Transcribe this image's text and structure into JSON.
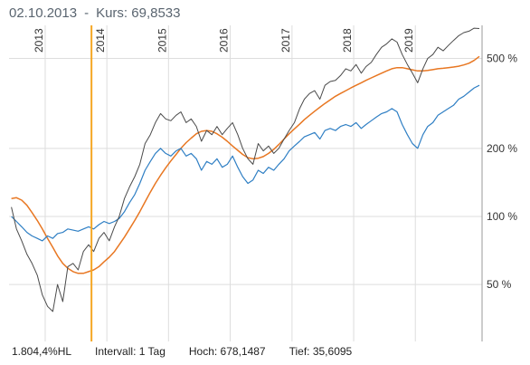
{
  "header": {
    "date": "02.10.2013",
    "separator": "-",
    "kurs_label": "Kurs:",
    "kurs_value": "69,8533"
  },
  "footer": {
    "performance": "1.804,4%HL",
    "interval": "Intervall: 1 Tag",
    "high": "Hoch: 678,1487",
    "low": "Tief: 35,6095"
  },
  "colors": {
    "price": "#4a4a4a",
    "benchmark": "#2f7fc4",
    "moving_average": "#e87722",
    "cursor": "#f5a623",
    "grid": "#dddddd"
  },
  "chart_data": {
    "type": "line",
    "y_scale": "log",
    "ylim": [
      28,
      700
    ],
    "x_range": [
      "2012-06-01",
      "2020-01-31"
    ],
    "x_tick_labels": [
      "2013",
      "2014",
      "2015",
      "2016",
      "2017",
      "2018",
      "2019"
    ],
    "y_tick_labels": [
      {
        "value": 500,
        "label": "500 %"
      },
      {
        "value": 200,
        "label": "200 %"
      },
      {
        "value": 100,
        "label": "100 %"
      },
      {
        "value": 50,
        "label": "50 %"
      }
    ],
    "cursor_date": "2013-10-02",
    "series": [
      {
        "key": "price",
        "x": [
          "2012-06",
          "2012-07",
          "2012-08",
          "2012-09",
          "2012-10",
          "2012-11",
          "2012-12",
          "2013-01",
          "2013-02",
          "2013-03",
          "2013-04",
          "2013-05",
          "2013-06",
          "2013-07",
          "2013-08",
          "2013-09",
          "2013-10",
          "2013-11",
          "2013-12",
          "2014-01",
          "2014-02",
          "2014-03",
          "2014-04",
          "2014-05",
          "2014-06",
          "2014-07",
          "2014-08",
          "2014-09",
          "2014-10",
          "2014-11",
          "2014-12",
          "2015-01",
          "2015-02",
          "2015-03",
          "2015-04",
          "2015-05",
          "2015-06",
          "2015-07",
          "2015-08",
          "2015-09",
          "2015-10",
          "2015-11",
          "2015-12",
          "2016-01",
          "2016-02",
          "2016-03",
          "2016-04",
          "2016-05",
          "2016-06",
          "2016-07",
          "2016-08",
          "2016-09",
          "2016-10",
          "2016-11",
          "2016-12",
          "2017-01",
          "2017-02",
          "2017-03",
          "2017-04",
          "2017-05",
          "2017-06",
          "2017-07",
          "2017-08",
          "2017-09",
          "2017-10",
          "2017-11",
          "2017-12",
          "2018-01",
          "2018-02",
          "2018-03",
          "2018-04",
          "2018-05",
          "2018-06",
          "2018-07",
          "2018-08",
          "2018-09",
          "2018-10",
          "2018-11",
          "2018-12",
          "2019-01",
          "2019-02",
          "2019-03",
          "2019-04",
          "2019-05",
          "2019-06",
          "2019-07",
          "2019-08",
          "2019-09",
          "2019-10",
          "2019-11",
          "2019-12",
          "2020-01"
        ],
        "values": [
          110,
          88,
          78,
          68,
          62,
          55,
          45,
          40,
          38,
          50,
          42,
          60,
          62,
          58,
          70,
          75,
          70,
          80,
          85,
          78,
          90,
          100,
          120,
          135,
          150,
          170,
          210,
          230,
          260,
          285,
          270,
          265,
          280,
          290,
          260,
          270,
          250,
          215,
          240,
          230,
          250,
          230,
          245,
          260,
          230,
          200,
          180,
          170,
          210,
          195,
          205,
          190,
          200,
          220,
          240,
          260,
          300,
          330,
          350,
          360,
          330,
          380,
          395,
          400,
          420,
          450,
          440,
          470,
          430,
          460,
          480,
          520,
          560,
          580,
          610,
          590,
          520,
          470,
          430,
          390,
          450,
          500,
          520,
          560,
          540,
          570,
          600,
          630,
          650,
          660,
          680,
          678
        ]
      },
      {
        "key": "benchmark",
        "x": [
          "2012-06",
          "2012-07",
          "2012-08",
          "2012-09",
          "2012-10",
          "2012-11",
          "2012-12",
          "2013-01",
          "2013-02",
          "2013-03",
          "2013-04",
          "2013-05",
          "2013-06",
          "2013-07",
          "2013-08",
          "2013-09",
          "2013-10",
          "2013-11",
          "2013-12",
          "2014-01",
          "2014-02",
          "2014-03",
          "2014-04",
          "2014-05",
          "2014-06",
          "2014-07",
          "2014-08",
          "2014-09",
          "2014-10",
          "2014-11",
          "2014-12",
          "2015-01",
          "2015-02",
          "2015-03",
          "2015-04",
          "2015-05",
          "2015-06",
          "2015-07",
          "2015-08",
          "2015-09",
          "2015-10",
          "2015-11",
          "2015-12",
          "2016-01",
          "2016-02",
          "2016-03",
          "2016-04",
          "2016-05",
          "2016-06",
          "2016-07",
          "2016-08",
          "2016-09",
          "2016-10",
          "2016-11",
          "2016-12",
          "2017-01",
          "2017-02",
          "2017-03",
          "2017-04",
          "2017-05",
          "2017-06",
          "2017-07",
          "2017-08",
          "2017-09",
          "2017-10",
          "2017-11",
          "2017-12",
          "2018-01",
          "2018-02",
          "2018-03",
          "2018-04",
          "2018-05",
          "2018-06",
          "2018-07",
          "2018-08",
          "2018-09",
          "2018-10",
          "2018-11",
          "2018-12",
          "2019-01",
          "2019-02",
          "2019-03",
          "2019-04",
          "2019-05",
          "2019-06",
          "2019-07",
          "2019-08",
          "2019-09",
          "2019-10",
          "2019-11",
          "2019-12",
          "2020-01"
        ],
        "values": [
          100,
          95,
          90,
          85,
          82,
          80,
          78,
          82,
          80,
          84,
          85,
          88,
          87,
          86,
          88,
          90,
          88,
          92,
          95,
          93,
          95,
          98,
          105,
          115,
          125,
          140,
          160,
          175,
          190,
          200,
          190,
          185,
          195,
          200,
          185,
          190,
          180,
          160,
          175,
          170,
          180,
          165,
          170,
          185,
          165,
          150,
          140,
          145,
          160,
          155,
          165,
          160,
          170,
          180,
          195,
          205,
          215,
          225,
          230,
          235,
          220,
          240,
          245,
          240,
          250,
          255,
          250,
          260,
          245,
          255,
          265,
          275,
          285,
          290,
          300,
          290,
          255,
          230,
          210,
          200,
          230,
          250,
          260,
          280,
          290,
          300,
          310,
          330,
          340,
          355,
          370,
          380
        ]
      },
      {
        "key": "moving_average",
        "x": [
          "2012-06",
          "2012-07",
          "2012-08",
          "2012-09",
          "2012-10",
          "2012-11",
          "2012-12",
          "2013-01",
          "2013-02",
          "2013-03",
          "2013-04",
          "2013-05",
          "2013-06",
          "2013-07",
          "2013-08",
          "2013-09",
          "2013-10",
          "2013-11",
          "2013-12",
          "2014-01",
          "2014-02",
          "2014-03",
          "2014-04",
          "2014-05",
          "2014-06",
          "2014-07",
          "2014-08",
          "2014-09",
          "2014-10",
          "2014-11",
          "2014-12",
          "2015-01",
          "2015-02",
          "2015-03",
          "2015-04",
          "2015-05",
          "2015-06",
          "2015-07",
          "2015-08",
          "2015-09",
          "2015-10",
          "2015-11",
          "2015-12",
          "2016-01",
          "2016-02",
          "2016-03",
          "2016-04",
          "2016-05",
          "2016-06",
          "2016-07",
          "2016-08",
          "2016-09",
          "2016-10",
          "2016-11",
          "2016-12",
          "2017-01",
          "2017-02",
          "2017-03",
          "2017-04",
          "2017-05",
          "2017-06",
          "2017-07",
          "2017-08",
          "2017-09",
          "2017-10",
          "2017-11",
          "2017-12",
          "2018-01",
          "2018-02",
          "2018-03",
          "2018-04",
          "2018-05",
          "2018-06",
          "2018-07",
          "2018-08",
          "2018-09",
          "2018-10",
          "2018-11",
          "2018-12",
          "2019-01",
          "2019-02",
          "2019-03",
          "2019-04",
          "2019-05",
          "2019-06",
          "2019-07",
          "2019-08",
          "2019-09",
          "2019-10",
          "2019-11",
          "2019-12",
          "2020-01"
        ],
        "values": [
          120,
          121,
          118,
          112,
          104,
          96,
          88,
          80,
          73,
          67,
          62,
          59,
          57,
          56,
          56,
          57,
          58,
          60,
          63,
          66,
          70,
          75,
          81,
          88,
          96,
          105,
          116,
          128,
          140,
          152,
          164,
          176,
          188,
          200,
          212,
          222,
          232,
          238,
          240,
          238,
          232,
          224,
          215,
          205,
          196,
          188,
          182,
          180,
          181,
          184,
          190,
          198,
          208,
          220,
          232,
          244,
          256,
          268,
          280,
          292,
          304,
          316,
          328,
          340,
          350,
          360,
          370,
          380,
          390,
          400,
          410,
          420,
          430,
          440,
          450,
          455,
          455,
          450,
          445,
          440,
          440,
          442,
          446,
          450,
          452,
          455,
          458,
          462,
          468,
          476,
          490,
          510
        ]
      }
    ]
  }
}
